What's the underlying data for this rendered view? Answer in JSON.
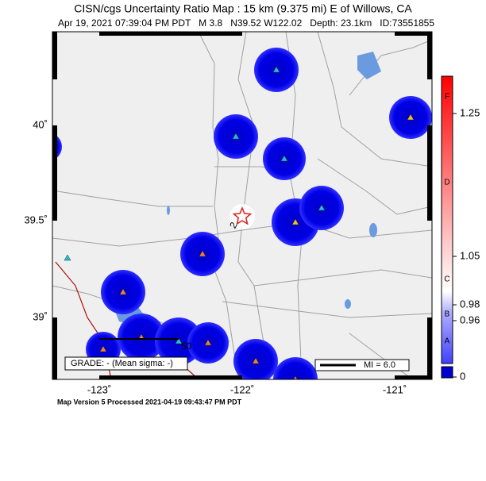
{
  "header": {
    "title": "CISN/cgs Uncertainty Ratio Map : 15 km (9.375 mi) E of Willows, CA",
    "subtitle": "Apr 19, 2021 07:39:04 PM PDT   M 3.8   N39.52 W122.02   Depth: 23.1km   ID:73551855"
  },
  "map": {
    "lat_labels": [
      "40˚",
      "39.5˚",
      "39˚"
    ],
    "lon_labels": [
      "-123˚",
      "-122˚",
      "-121˚"
    ],
    "epicenter_label": "2",
    "scale_label": "50",
    "grade": "GRADE: - (Mean sigma: -)",
    "mi_label": "MI = 6.0"
  },
  "colorbar": {
    "ticks": [
      "1.25",
      "1.05",
      "0.98",
      "0.96",
      "0"
    ],
    "grades": [
      "F",
      "D",
      "C",
      "B",
      "A"
    ]
  },
  "footer": "Map Version 5 Processed 2021-04-19 09:43:47 PM PDT"
}
